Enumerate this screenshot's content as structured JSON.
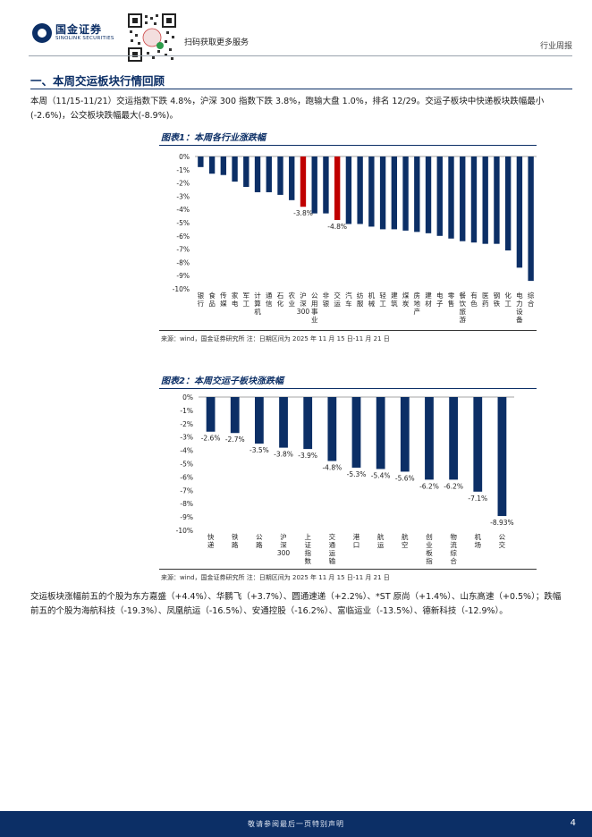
{
  "header": {
    "brand_cn": "国金证券",
    "brand_en": "SINOLINK SECURITIES",
    "qr_text": "扫码获取更多服务",
    "doc_type": "行业周报"
  },
  "section": {
    "title": "一、本周交运板块行情回顾"
  },
  "paragraphs": {
    "intro": "本周（11/15-11/21）交运指数下跌 4.8%，沪深 300 指数下跌 3.8%，跑输大盘 1.0%，排名 12/29。交运子板块中快递板块跌幅最小(-2.6%)，公交板块跌幅最大(-8.9%)。",
    "stocks": "交运板块涨幅前五的个股为东方嘉盛（+4.4%）、华鹏飞（+3.7%）、圆通速递（+2.2%）、*ST 原尚（+1.4%）、山东高速（+0.5%）；跌幅前五的个股为海航科技（-19.3%）、凤凰航运（-16.5%）、安通控股（-16.2%）、富临运业（-13.5%）、德新科技（-12.9%）。"
  },
  "chart_data": [
    {
      "type": "bar",
      "title": "图表1：本周各行业涨跌幅",
      "categories": [
        "银行",
        "食品",
        "传媒",
        "家电",
        "军工",
        "计算机",
        "通信",
        "石化",
        "农业",
        "沪深300",
        "公用事业",
        "非银",
        "交运",
        "汽车",
        "纺服",
        "机械",
        "轻工",
        "建筑",
        "煤炭",
        "房地产",
        "建材",
        "电子",
        "零售",
        "餐饮旅游",
        "有色",
        "医药",
        "钢铁",
        "化工",
        "电力设备",
        "综合"
      ],
      "values": [
        -0.8,
        -1.3,
        -1.4,
        -1.9,
        -2.3,
        -2.7,
        -2.7,
        -2.9,
        -3.3,
        -3.8,
        -4.3,
        -4.3,
        -4.8,
        -5.1,
        -5.1,
        -5.3,
        -5.5,
        -5.5,
        -5.6,
        -5.7,
        -5.8,
        -6.0,
        -6.2,
        -6.4,
        -6.5,
        -6.6,
        -6.6,
        -7.1,
        -8.4,
        -9.4
      ],
      "highlight": [
        "沪深300",
        "交运"
      ],
      "data_labels": [
        {
          "category": "沪深300",
          "text": "-3.8%"
        },
        {
          "category": "交运",
          "text": "-4.8%"
        }
      ],
      "yticks": [
        "0%",
        "-1%",
        "-2%",
        "-3%",
        "-4%",
        "-5%",
        "-6%",
        "-7%",
        "-8%",
        "-9%",
        "-10%"
      ],
      "ylim": [
        -10,
        0
      ],
      "colors": {
        "bar": "#0c2f66",
        "highlight": "#c00000"
      },
      "source": "来源：wind，国金证券研究所    注：日期区间为 2025 年 11 月 15 日-11 月 21 日"
    },
    {
      "type": "bar",
      "title": "图表2：本周交运子板块涨跌幅",
      "categories": [
        "快递",
        "铁路",
        "公路",
        "沪深300",
        "上证指数",
        "交通运输",
        "港口",
        "航运",
        "航空",
        "创业板指",
        "物流综合",
        "机场",
        "公交"
      ],
      "values": [
        -2.6,
        -2.7,
        -3.5,
        -3.8,
        -3.9,
        -4.8,
        -5.3,
        -5.4,
        -5.6,
        -6.2,
        -6.2,
        -7.1,
        -8.93
      ],
      "labels": [
        "-2.6%",
        "-2.7%",
        "-3.5%",
        "-3.8%",
        "-3.9%",
        "-4.8%",
        "-5.3%",
        "-5.4%",
        "-5.6%",
        "-6.2%",
        "-6.2%",
        "-7.1%",
        "-8.93%"
      ],
      "yticks": [
        "0%",
        "-1%",
        "-2%",
        "-3%",
        "-4%",
        "-5%",
        "-6%",
        "-7%",
        "-8%",
        "-9%",
        "-10%"
      ],
      "ylim": [
        -10,
        0
      ],
      "colors": {
        "bar": "#0c2f66"
      },
      "source": "来源：wind，国金证券研究所    注：日期区间为 2025 年 11 月 15 日-11 月 21 日"
    }
  ],
  "footer": {
    "disclaimer": "敬请参阅最后一页特别声明",
    "page": "4"
  }
}
